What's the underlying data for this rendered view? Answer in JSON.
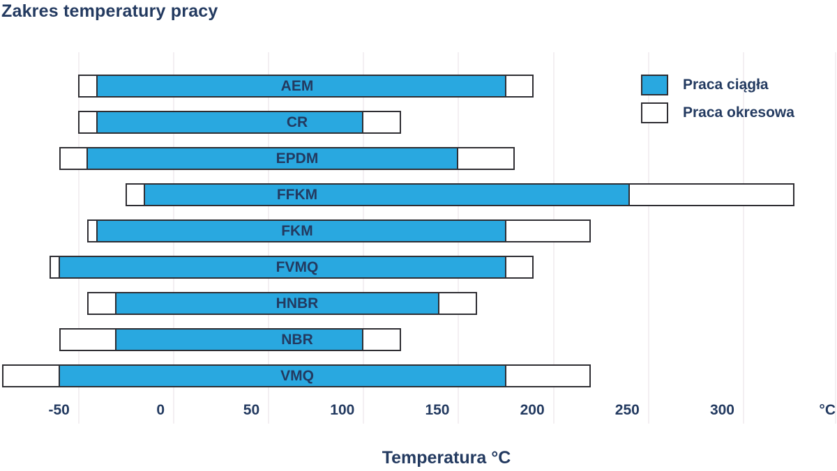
{
  "title": "Zakres temperatury pracy",
  "legend": {
    "continuous_label": "Praca ciągła",
    "periodic_label": "Praca okresowa"
  },
  "axis": {
    "label": "Temperatura °C",
    "unit": "°C",
    "ticks": [
      -50,
      0,
      50,
      100,
      150,
      200,
      250,
      300
    ]
  },
  "colors": {
    "bar_fill": "#29A8E0",
    "bar_outline": "#2E2D32",
    "text_navy": "#233A60",
    "gridline": "#F3EFF2",
    "background": "#FFFFFF"
  },
  "chart_data": {
    "type": "bar",
    "subtype": "horizontal-range-bars",
    "title": "Zakres temperatury pracy",
    "xlabel": "Temperatura °C",
    "xlim": [
      -90,
      350
    ],
    "grid": "vertical-light",
    "legend_position": "top-right",
    "categories": [
      "AEM",
      "CR",
      "EPDM",
      "FFKM",
      "FKM",
      "FVMQ",
      "HNBR",
      "NBR",
      "VMQ"
    ],
    "series": [
      {
        "name": "Praca ciągła",
        "ranges_c": [
          [
            -40,
            175
          ],
          [
            -40,
            100
          ],
          [
            -45,
            150
          ],
          [
            -15,
            240
          ],
          [
            -40,
            175
          ],
          [
            -60,
            175
          ],
          [
            -30,
            140
          ],
          [
            -30,
            100
          ],
          [
            -60,
            175
          ]
        ]
      },
      {
        "name": "Praca okresowa",
        "ranges_c": [
          [
            -50,
            190
          ],
          [
            -50,
            120
          ],
          [
            -60,
            180
          ],
          [
            -25,
            327
          ],
          [
            -45,
            220
          ],
          [
            -65,
            190
          ],
          [
            -45,
            160
          ],
          [
            -60,
            120
          ],
          [
            -90,
            220
          ]
        ]
      }
    ]
  }
}
